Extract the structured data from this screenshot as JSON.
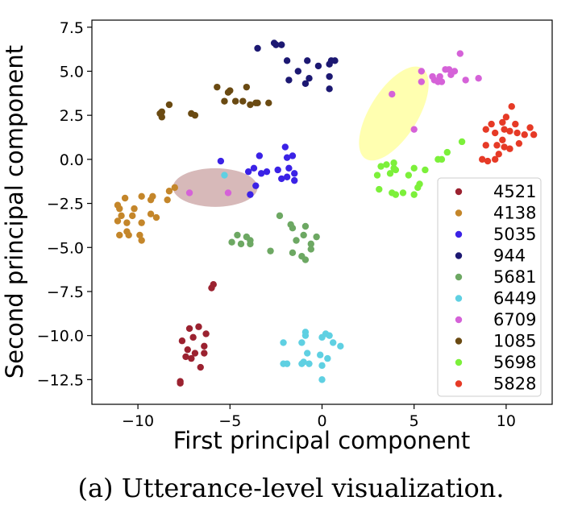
{
  "caption": "(a) Utterance-level visualization.",
  "chart_data": {
    "type": "scatter",
    "xlabel": "First principal component",
    "ylabel": "Second principal component",
    "xlim": [
      -12.5,
      12.5
    ],
    "ylim": [
      -13.9,
      7.9
    ],
    "xticks": [
      -10,
      -5,
      0,
      5,
      10
    ],
    "xtick_labels": [
      "−10",
      "−5",
      "0",
      "5",
      "10"
    ],
    "yticks": [
      7.5,
      5.0,
      2.5,
      0.0,
      -2.5,
      -5.0,
      -7.5,
      -10.0,
      -12.5
    ],
    "ytick_labels": [
      "7.5",
      "5.0",
      "2.5",
      "0.0",
      "−2.5",
      "−5.0",
      "−7.5",
      "−10.0",
      "−12.5"
    ],
    "grid": false,
    "legend_position": "lower-right",
    "series": [
      {
        "name": "4521",
        "color": "#9b2230",
        "points": [
          [
            -5.9,
            -7.1
          ],
          [
            -6.0,
            -7.3
          ],
          [
            -6.7,
            -9.5
          ],
          [
            -7.2,
            -9.6
          ],
          [
            -6.3,
            -9.9
          ],
          [
            -7.0,
            -10.1
          ],
          [
            -7.6,
            -10.3
          ],
          [
            -6.4,
            -10.6
          ],
          [
            -7.3,
            -10.8
          ],
          [
            -6.9,
            -11.0
          ],
          [
            -6.4,
            -11.0
          ],
          [
            -7.4,
            -11.2
          ],
          [
            -7.1,
            -11.3
          ],
          [
            -6.6,
            -11.8
          ],
          [
            -7.7,
            -12.6
          ],
          [
            -7.7,
            -12.7
          ]
        ]
      },
      {
        "name": "4138",
        "color": "#c4862a",
        "points": [
          [
            -8.0,
            -1.6
          ],
          [
            -8.3,
            -1.8
          ],
          [
            -8.4,
            -2.3
          ],
          [
            -10.7,
            -2.2
          ],
          [
            -9.8,
            -2.1
          ],
          [
            -9.3,
            -2.3
          ],
          [
            -9.2,
            -2.1
          ],
          [
            -11.1,
            -2.6
          ],
          [
            -10.2,
            -2.8
          ],
          [
            -11.0,
            -2.8
          ],
          [
            -9.3,
            -3.1
          ],
          [
            -10.3,
            -3.2
          ],
          [
            -10.9,
            -3.2
          ],
          [
            -9.0,
            -3.3
          ],
          [
            -11.1,
            -3.5
          ],
          [
            -10.6,
            -3.6
          ],
          [
            -9.8,
            -3.6
          ],
          [
            -10.6,
            -4.1
          ],
          [
            -11.0,
            -4.3
          ],
          [
            -10.5,
            -4.3
          ],
          [
            -9.9,
            -4.3
          ],
          [
            -9.8,
            -4.6
          ]
        ]
      },
      {
        "name": "5035",
        "color": "#3b22e6",
        "points": [
          [
            -5.5,
            -0.1
          ],
          [
            -3.4,
            0.2
          ],
          [
            -2.0,
            0.7
          ],
          [
            -1.9,
            0.1
          ],
          [
            -1.6,
            0.2
          ],
          [
            -4.0,
            -0.7
          ],
          [
            -3.7,
            -0.5
          ],
          [
            -3.0,
            -0.7
          ],
          [
            -3.3,
            -0.8
          ],
          [
            -2.4,
            -0.6
          ],
          [
            -1.9,
            -1.0
          ],
          [
            -1.8,
            -0.5
          ],
          [
            -1.5,
            -0.8
          ],
          [
            -1.5,
            -1.2
          ],
          [
            -2.2,
            -1.1
          ],
          [
            -3.6,
            -1.5
          ],
          [
            -3.9,
            -2.0
          ]
        ]
      },
      {
        "name": "944",
        "color": "#1c1872",
        "points": [
          [
            -2.6,
            6.6
          ],
          [
            -2.5,
            6.5
          ],
          [
            -2.2,
            6.5
          ],
          [
            -3.5,
            6.3
          ],
          [
            -1.9,
            5.6
          ],
          [
            -0.8,
            5.6
          ],
          [
            -0.2,
            5.3
          ],
          [
            0.5,
            5.6
          ],
          [
            0.7,
            5.6
          ],
          [
            0.4,
            5.4
          ],
          [
            -1.3,
            5.0
          ],
          [
            -0.7,
            4.6
          ],
          [
            0.4,
            4.7
          ],
          [
            -1.8,
            4.5
          ],
          [
            -0.9,
            4.3
          ],
          [
            0.4,
            4.0
          ]
        ]
      },
      {
        "name": "5681",
        "color": "#6da863",
        "points": [
          [
            -2.3,
            -3.2
          ],
          [
            -1.7,
            -3.7
          ],
          [
            -1.6,
            -3.9
          ],
          [
            -0.9,
            -3.8
          ],
          [
            -4.6,
            -4.3
          ],
          [
            -4.1,
            -4.4
          ],
          [
            -3.9,
            -4.6
          ],
          [
            -4.9,
            -4.7
          ],
          [
            -4.4,
            -4.8
          ],
          [
            -3.9,
            -4.8
          ],
          [
            -1.4,
            -4.6
          ],
          [
            -1.0,
            -4.3
          ],
          [
            -0.6,
            -4.8
          ],
          [
            -0.3,
            -4.4
          ],
          [
            -0.6,
            -5.1
          ],
          [
            -2.8,
            -5.2
          ],
          [
            -1.6,
            -5.3
          ],
          [
            -1.1,
            -5.5
          ],
          [
            -0.9,
            -5.7
          ]
        ]
      },
      {
        "name": "6449",
        "color": "#5fd0e2",
        "points": [
          [
            -5.3,
            -0.9
          ],
          [
            -0.9,
            -9.8
          ],
          [
            -0.9,
            -10.0
          ],
          [
            0.0,
            -10.1
          ],
          [
            0.2,
            -9.9
          ],
          [
            0.4,
            -10.0
          ],
          [
            0.6,
            -10.4
          ],
          [
            -1.1,
            -10.4
          ],
          [
            -2.1,
            -10.4
          ],
          [
            1.0,
            -10.6
          ],
          [
            -0.8,
            -11.0
          ],
          [
            -0.1,
            -11.1
          ],
          [
            0.3,
            -11.3
          ],
          [
            -1.0,
            -11.5
          ],
          [
            -0.7,
            -11.6
          ],
          [
            -1.1,
            -11.6
          ],
          [
            0.0,
            -11.7
          ],
          [
            -1.9,
            -11.6
          ],
          [
            -2.1,
            -11.6
          ],
          [
            0.0,
            -12.5
          ]
        ]
      },
      {
        "name": "6709",
        "color": "#d562d8",
        "points": [
          [
            -7.2,
            -1.9
          ],
          [
            -5.1,
            -1.9
          ],
          [
            3.8,
            3.7
          ],
          [
            5.0,
            1.7
          ],
          [
            7.5,
            6.0
          ],
          [
            6.7,
            5.1
          ],
          [
            6.9,
            5.1
          ],
          [
            7.2,
            5.0
          ],
          [
            7.0,
            4.8
          ],
          [
            5.4,
            5.0
          ],
          [
            6.0,
            4.7
          ],
          [
            6.4,
            4.7
          ],
          [
            6.1,
            4.5
          ],
          [
            8.5,
            4.6
          ],
          [
            5.4,
            4.4
          ],
          [
            6.3,
            4.4
          ],
          [
            7.8,
            4.5
          ],
          [
            6.5,
            4.4
          ]
        ]
      },
      {
        "name": "1085",
        "color": "#6a4a12",
        "points": [
          [
            -5.7,
            4.1
          ],
          [
            -5.0,
            3.9
          ],
          [
            -4.1,
            4.1
          ],
          [
            -8.3,
            3.1
          ],
          [
            -6.9,
            2.5
          ],
          [
            -7.1,
            2.6
          ],
          [
            -8.7,
            2.7
          ],
          [
            -8.7,
            2.4
          ],
          [
            -8.8,
            2.6
          ],
          [
            -5.1,
            3.8
          ],
          [
            -4.7,
            3.3
          ],
          [
            -4.3,
            3.3
          ],
          [
            -3.9,
            3.1
          ],
          [
            -3.6,
            3.2
          ],
          [
            -3.5,
            3.2
          ],
          [
            -2.9,
            3.2
          ],
          [
            -5.3,
            3.3
          ]
        ]
      },
      {
        "name": "5698",
        "color": "#7cf03a",
        "points": [
          [
            7.6,
            1.0
          ],
          [
            6.8,
            0.4
          ],
          [
            6.5,
            0.0
          ],
          [
            6.3,
            0.0
          ],
          [
            5.6,
            -0.6
          ],
          [
            3.9,
            -0.2
          ],
          [
            3.5,
            -0.3
          ],
          [
            3.2,
            -0.4
          ],
          [
            3.9,
            -0.5
          ],
          [
            4.0,
            -0.6
          ],
          [
            5.0,
            -0.5
          ],
          [
            3.0,
            -0.9
          ],
          [
            3.7,
            -0.8
          ],
          [
            4.7,
            -0.9
          ],
          [
            5.3,
            -1.4
          ],
          [
            5.2,
            -1.6
          ],
          [
            3.8,
            -1.9
          ],
          [
            4.0,
            -2.0
          ],
          [
            4.4,
            -1.9
          ],
          [
            3.1,
            -1.7
          ],
          [
            5.0,
            -2.0
          ]
        ]
      },
      {
        "name": "5828",
        "color": "#e63a26",
        "points": [
          [
            10.3,
            3.0
          ],
          [
            10.0,
            2.4
          ],
          [
            9.2,
            2.0
          ],
          [
            9.8,
            2.1
          ],
          [
            10.5,
            2.0
          ],
          [
            11.3,
            1.8
          ],
          [
            8.9,
            1.7
          ],
          [
            9.4,
            1.5
          ],
          [
            9.9,
            1.7
          ],
          [
            10.2,
            1.6
          ],
          [
            10.6,
            1.5
          ],
          [
            11.0,
            1.4
          ],
          [
            11.5,
            1.4
          ],
          [
            9.8,
            1.1
          ],
          [
            10.7,
            0.9
          ],
          [
            8.9,
            0.8
          ],
          [
            9.5,
            0.8
          ],
          [
            9.9,
            0.7
          ],
          [
            10.2,
            0.6
          ],
          [
            9.6,
            0.3
          ],
          [
            9.4,
            0.0
          ],
          [
            9.0,
            -0.1
          ],
          [
            8.7,
            0.0
          ]
        ]
      }
    ],
    "annotations": [
      {
        "shape": "ellipse",
        "color": "#ffffb0",
        "center": [
          3.9,
          2.6
        ],
        "rx_data": 2.9,
        "ry_data": 1.3,
        "angle_deg": -58
      },
      {
        "shape": "ellipse",
        "color": "#d7b9b9",
        "center": [
          -5.8,
          -1.6
        ],
        "rx_data": 2.3,
        "ry_data": 1.05,
        "angle_deg": 0
      }
    ]
  }
}
